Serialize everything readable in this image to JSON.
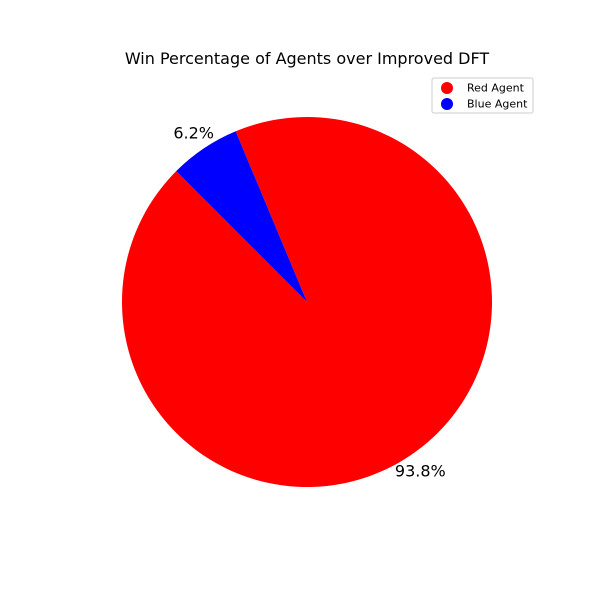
{
  "chart_data": {
    "type": "pie",
    "title": "Win Percentage of Agents over Improved DFT",
    "labels": [
      "Red Agent",
      "Blue Agent"
    ],
    "values": [
      93.8,
      6.2
    ],
    "value_labels": [
      "93.8%",
      "6.2%"
    ],
    "colors": [
      "#ff0000",
      "#0000ff"
    ],
    "legend_placement": "top-right"
  }
}
